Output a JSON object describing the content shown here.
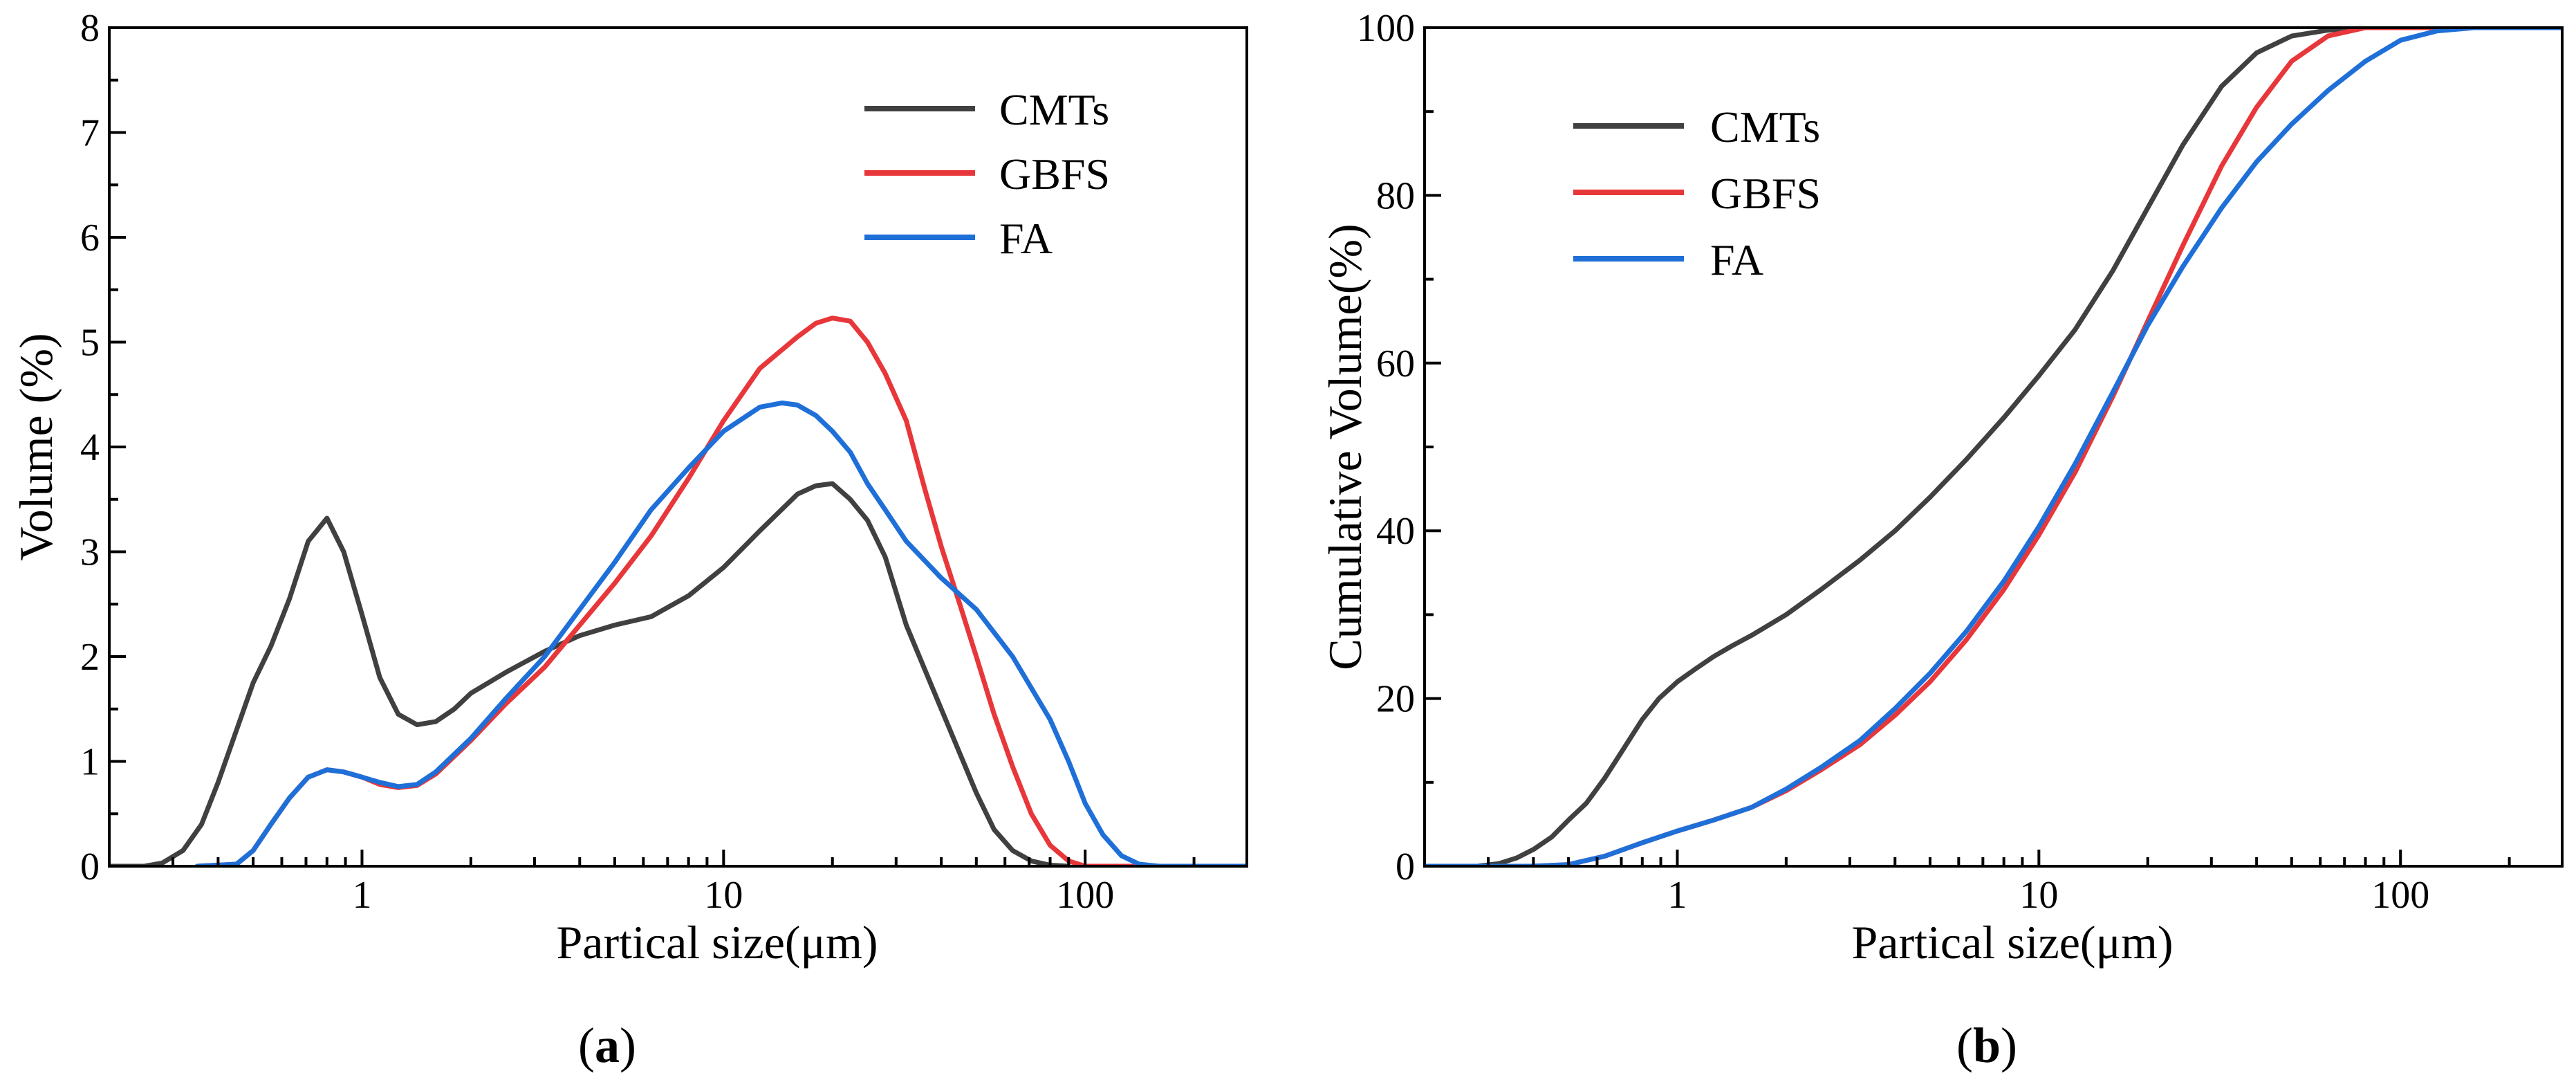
{
  "colors": {
    "CMTs": "#404040",
    "GBFS": "#e8373a",
    "FA": "#1f6fd8",
    "axis": "#000000",
    "background": "#ffffff"
  },
  "chart_data": [
    {
      "id": "a",
      "type": "line",
      "panel_label": "a",
      "title": "",
      "xlabel": "Partical size(μm)",
      "ylabel": "Volume (%)",
      "xscale": "log",
      "xlim": [
        0.2,
        280
      ],
      "ylim": [
        0,
        8
      ],
      "xticks": [
        1,
        10,
        100
      ],
      "xtick_labels": [
        "1",
        "10",
        "100"
      ],
      "yticks": [
        0,
        1,
        2,
        3,
        4,
        5,
        6,
        7,
        8
      ],
      "ytick_labels": [
        "0",
        "1",
        "2",
        "3",
        "4",
        "5",
        "6",
        "7",
        "8"
      ],
      "grid": false,
      "legend_position": "top-right",
      "series": [
        {
          "name": "CMTs",
          "color": "#404040",
          "x": [
            0.2,
            0.25,
            0.28,
            0.32,
            0.36,
            0.4,
            0.45,
            0.5,
            0.56,
            0.63,
            0.71,
            0.8,
            0.89,
            1.0,
            1.12,
            1.26,
            1.42,
            1.6,
            1.8,
            2.0,
            2.5,
            3.2,
            4.0,
            5.0,
            6.3,
            8.0,
            10,
            12.6,
            16,
            18,
            20,
            22.4,
            25,
            28,
            32,
            40,
            50,
            56,
            63,
            71,
            80,
            90
          ],
          "y": [
            0,
            0,
            0.03,
            0.15,
            0.4,
            0.8,
            1.3,
            1.75,
            2.1,
            2.55,
            3.1,
            3.32,
            3.0,
            2.4,
            1.8,
            1.45,
            1.35,
            1.38,
            1.5,
            1.65,
            1.85,
            2.05,
            2.2,
            2.3,
            2.38,
            2.58,
            2.85,
            3.2,
            3.55,
            3.63,
            3.65,
            3.5,
            3.3,
            2.95,
            2.3,
            1.5,
            0.7,
            0.35,
            0.15,
            0.05,
            0.01,
            0
          ]
        },
        {
          "name": "GBFS",
          "color": "#e8373a",
          "x": [
            0.35,
            0.45,
            0.5,
            0.56,
            0.63,
            0.71,
            0.8,
            0.89,
            1.0,
            1.12,
            1.26,
            1.42,
            1.6,
            2.0,
            2.5,
            3.2,
            4.0,
            5.0,
            6.3,
            8.0,
            10,
            12.6,
            16,
            18,
            20,
            22.4,
            25,
            28,
            32,
            36,
            40,
            45,
            50,
            56,
            63,
            71,
            80,
            90,
            100,
            280
          ],
          "y": [
            0,
            0.02,
            0.15,
            0.4,
            0.65,
            0.85,
            0.92,
            0.9,
            0.85,
            0.78,
            0.75,
            0.77,
            0.88,
            1.2,
            1.55,
            1.9,
            2.3,
            2.7,
            3.15,
            3.7,
            4.25,
            4.75,
            5.05,
            5.18,
            5.23,
            5.2,
            5.0,
            4.7,
            4.25,
            3.6,
            3.05,
            2.5,
            2.0,
            1.45,
            0.95,
            0.5,
            0.2,
            0.05,
            0,
            0
          ]
        },
        {
          "name": "FA",
          "color": "#1f6fd8",
          "x": [
            0.35,
            0.45,
            0.5,
            0.56,
            0.63,
            0.71,
            0.8,
            0.89,
            1.0,
            1.12,
            1.26,
            1.42,
            1.6,
            2.0,
            2.5,
            3.2,
            4.0,
            5.0,
            6.3,
            8.0,
            10,
            12.6,
            14.5,
            16,
            18,
            20,
            22.4,
            25,
            28,
            32,
            40,
            50,
            63,
            71,
            80,
            90,
            100,
            112,
            126,
            141,
            160,
            280
          ],
          "y": [
            0,
            0.02,
            0.15,
            0.4,
            0.65,
            0.85,
            0.92,
            0.9,
            0.85,
            0.8,
            0.76,
            0.78,
            0.9,
            1.22,
            1.6,
            2.0,
            2.45,
            2.9,
            3.4,
            3.8,
            4.15,
            4.38,
            4.42,
            4.4,
            4.3,
            4.15,
            3.95,
            3.65,
            3.4,
            3.1,
            2.75,
            2.45,
            2.0,
            1.7,
            1.4,
            1.0,
            0.6,
            0.3,
            0.1,
            0.02,
            0,
            0
          ]
        }
      ]
    },
    {
      "id": "b",
      "type": "line",
      "panel_label": "b",
      "title": "",
      "xlabel": "Partical size(μm)",
      "ylabel": "Cumulative Volume(%)",
      "xscale": "log",
      "xlim": [
        0.2,
        280
      ],
      "ylim": [
        0,
        100
      ],
      "xticks": [
        1,
        10,
        100
      ],
      "xtick_labels": [
        "1",
        "10",
        "100"
      ],
      "yticks": [
        0,
        20,
        40,
        60,
        80,
        100
      ],
      "ytick_labels": [
        "0",
        "20",
        "40",
        "60",
        "80",
        "100"
      ],
      "grid": false,
      "legend_position": "top-left",
      "series": [
        {
          "name": "CMTs",
          "color": "#404040",
          "x": [
            0.2,
            0.28,
            0.32,
            0.36,
            0.4,
            0.45,
            0.5,
            0.56,
            0.63,
            0.71,
            0.8,
            0.89,
            1.0,
            1.12,
            1.26,
            1.42,
            1.6,
            2.0,
            2.5,
            3.2,
            4.0,
            5.0,
            6.3,
            8.0,
            10,
            12.6,
            16,
            20,
            25,
            32,
            40,
            50,
            63,
            80,
            100,
            280
          ],
          "y": [
            0,
            0,
            0.3,
            1.0,
            2.0,
            3.5,
            5.5,
            7.5,
            10.5,
            14,
            17.5,
            20,
            22,
            23.5,
            25,
            26.3,
            27.5,
            30,
            33,
            36.5,
            40,
            44,
            48.5,
            53.5,
            58.5,
            64,
            71,
            78.5,
            86,
            93,
            97,
            99,
            99.7,
            100,
            100,
            100
          ]
        },
        {
          "name": "GBFS",
          "color": "#e8373a",
          "x": [
            0.2,
            0.4,
            0.5,
            0.63,
            0.8,
            1.0,
            1.26,
            1.6,
            2.0,
            2.5,
            3.2,
            4.0,
            5.0,
            6.3,
            8.0,
            10,
            12.6,
            16,
            20,
            25,
            32,
            40,
            50,
            63,
            80,
            100,
            280
          ],
          "y": [
            0,
            0,
            0.2,
            1.2,
            2.8,
            4.2,
            5.5,
            7.0,
            9.0,
            11.5,
            14.5,
            18,
            22,
            27,
            33,
            39.5,
            47,
            56,
            65,
            74,
            83.5,
            90.5,
            96,
            99,
            100,
            100,
            100
          ]
        },
        {
          "name": "FA",
          "color": "#1f6fd8",
          "x": [
            0.2,
            0.4,
            0.5,
            0.63,
            0.8,
            1.0,
            1.26,
            1.6,
            2.0,
            2.5,
            3.2,
            4.0,
            5.0,
            6.3,
            8.0,
            10,
            12.6,
            16,
            20,
            25,
            32,
            40,
            50,
            63,
            80,
            100,
            126,
            160,
            280
          ],
          "y": [
            0,
            0,
            0.2,
            1.2,
            2.8,
            4.2,
            5.5,
            7.0,
            9.2,
            11.8,
            15,
            18.8,
            23,
            28,
            34,
            40.5,
            48,
            56.5,
            64.5,
            71.5,
            78.5,
            84,
            88.5,
            92.5,
            96,
            98.5,
            99.6,
            100,
            100
          ]
        }
      ]
    }
  ]
}
